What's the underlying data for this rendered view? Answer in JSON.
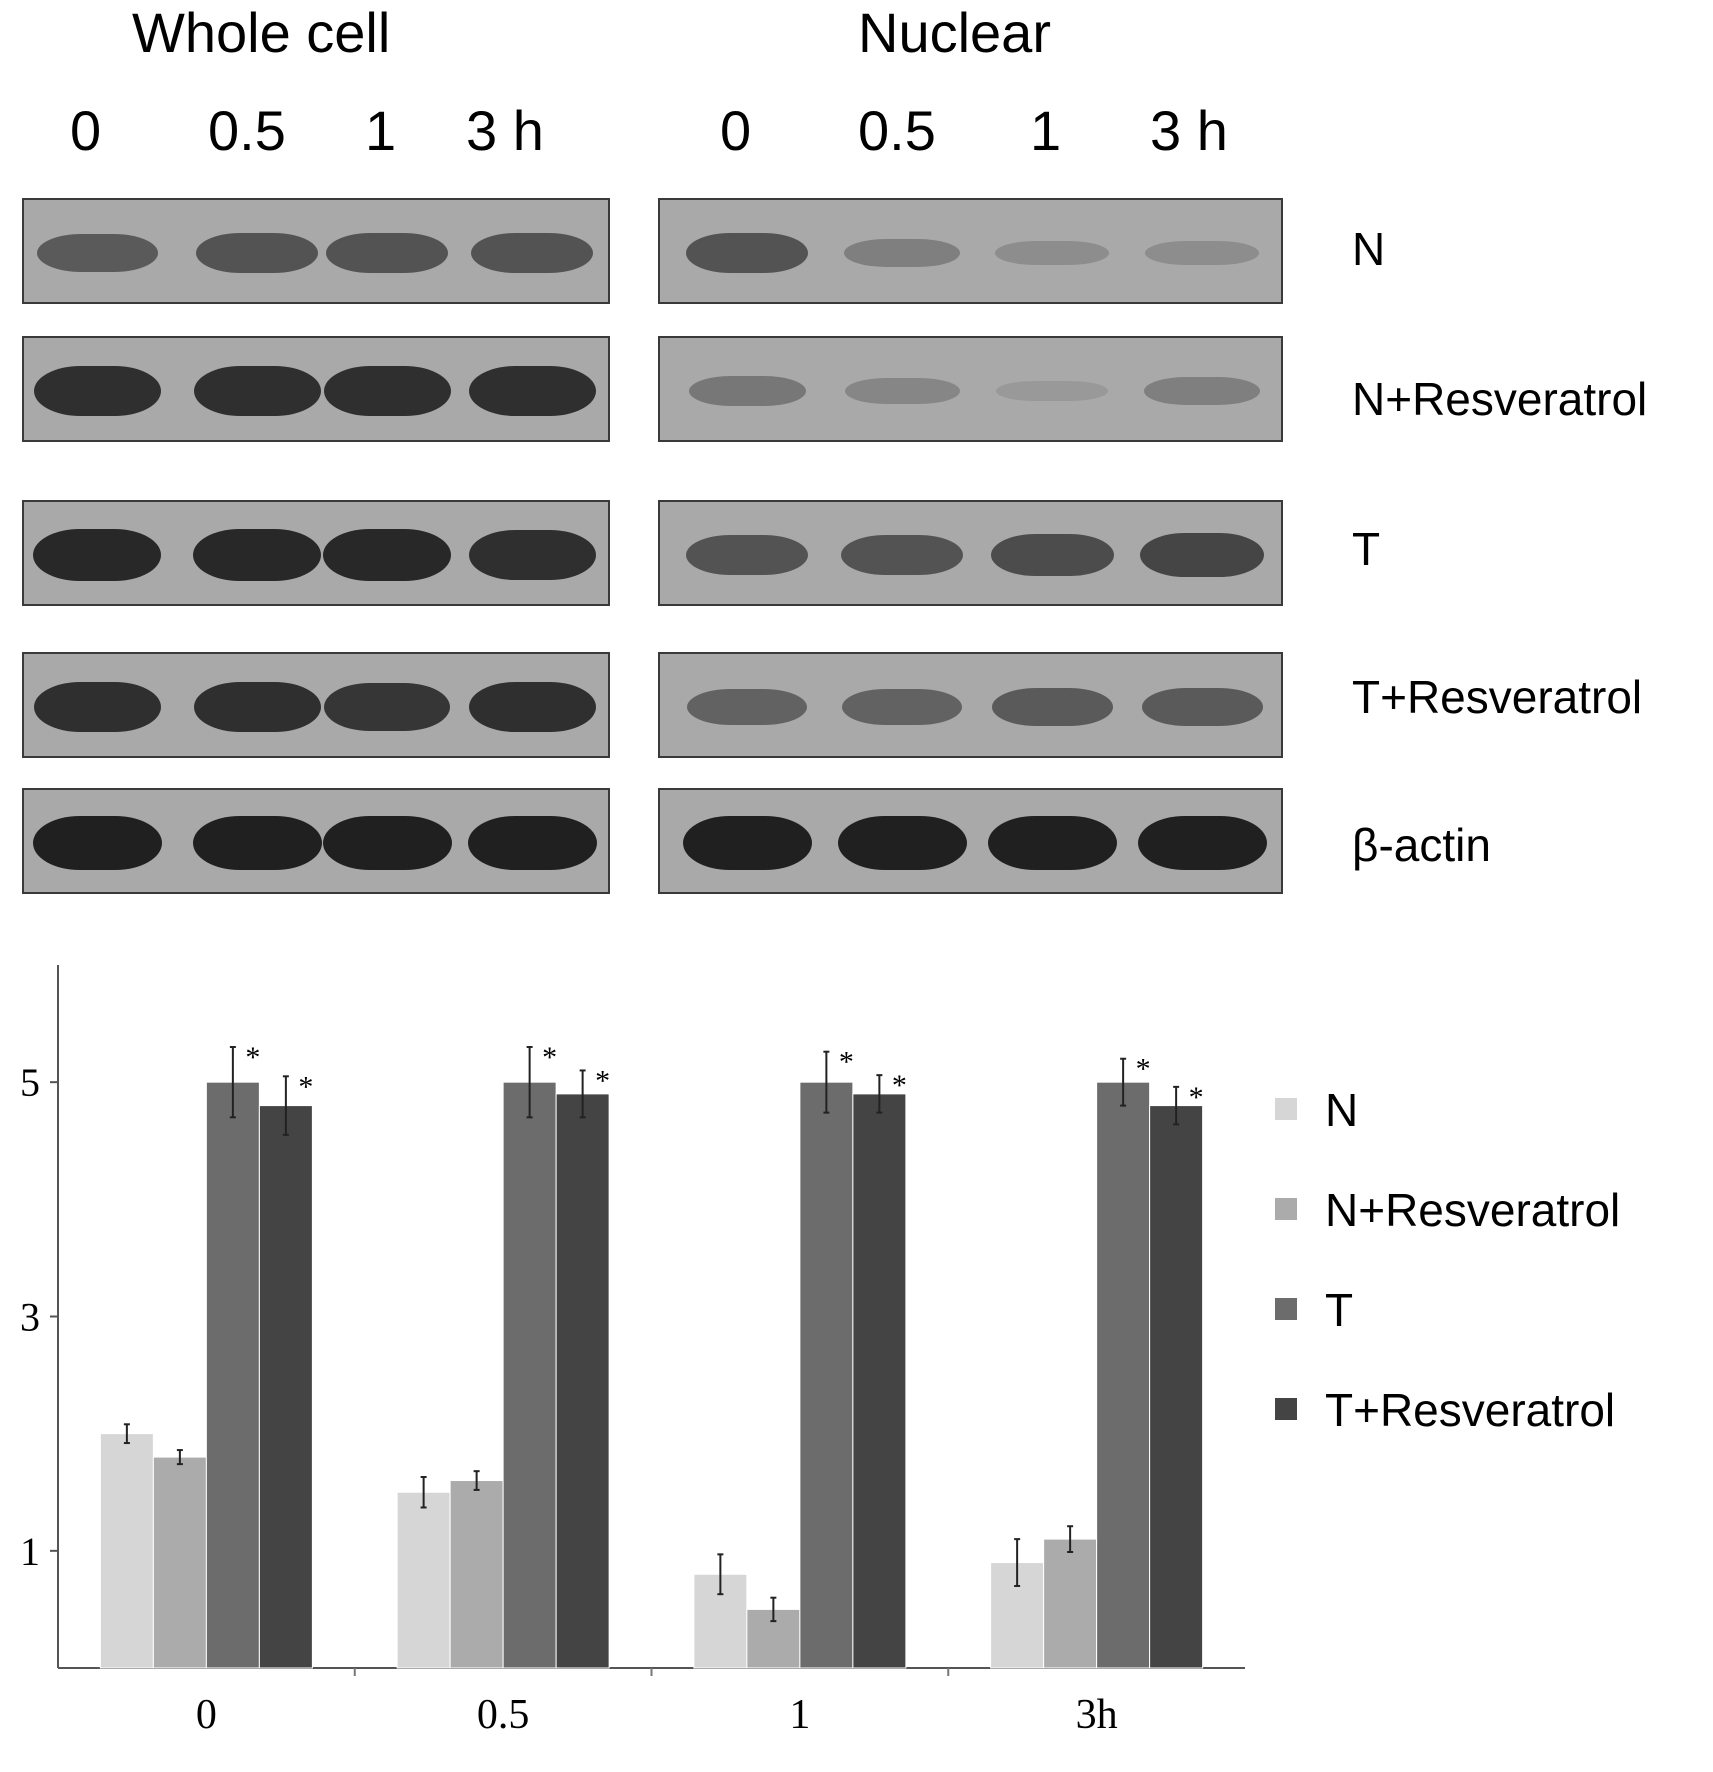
{
  "blot": {
    "titles": {
      "whole": "Whole cell",
      "nuclear": "Nuclear"
    },
    "lanes_whole": [
      "0",
      "0.5",
      "1",
      "3 h"
    ],
    "lanes_nuclear": [
      "0",
      "0.5",
      "1",
      "3 h"
    ],
    "rows": [
      {
        "label": "N",
        "whole_intensity": [
          0.55,
          0.6,
          0.6,
          0.6
        ],
        "nuclear_intensity": [
          0.6,
          0.3,
          0.2,
          0.2
        ]
      },
      {
        "label": "N+Resveratrol",
        "whole_intensity": [
          0.85,
          0.85,
          0.85,
          0.85
        ],
        "nuclear_intensity": [
          0.35,
          0.25,
          0.12,
          0.3
        ]
      },
      {
        "label": "T",
        "whole_intensity": [
          0.9,
          0.9,
          0.9,
          0.85
        ],
        "nuclear_intensity": [
          0.6,
          0.6,
          0.65,
          0.7
        ]
      },
      {
        "label": "T+Resveratrol",
        "whole_intensity": [
          0.85,
          0.85,
          0.8,
          0.85
        ],
        "nuclear_intensity": [
          0.5,
          0.5,
          0.55,
          0.55
        ]
      },
      {
        "label": "β-actin",
        "whole_intensity": [
          0.95,
          0.95,
          0.95,
          0.95
        ],
        "nuclear_intensity": [
          0.95,
          0.95,
          0.95,
          0.95
        ]
      }
    ]
  },
  "chart_data": {
    "type": "bar",
    "categories": [
      "0",
      "0.5",
      "1",
      "3h"
    ],
    "yticks": [
      1,
      3,
      5
    ],
    "ylim": [
      0,
      6
    ],
    "series": [
      {
        "name": "N",
        "color": "#d6d6d6",
        "values": [
          2.0,
          1.5,
          0.8,
          0.9
        ],
        "errors": [
          0.08,
          0.13,
          0.17,
          0.2
        ],
        "sig": [
          false,
          false,
          false,
          false
        ]
      },
      {
        "name": "N+Resveratrol",
        "color": "#ababab",
        "values": [
          1.8,
          1.6,
          0.5,
          1.1
        ],
        "errors": [
          0.06,
          0.08,
          0.1,
          0.11
        ],
        "sig": [
          false,
          false,
          false,
          false
        ]
      },
      {
        "name": "T",
        "color": "#6c6c6c",
        "values": [
          5.0,
          5.0,
          5.0,
          5.0
        ],
        "errors": [
          0.3,
          0.3,
          0.26,
          0.2
        ],
        "sig": [
          true,
          true,
          true,
          true
        ]
      },
      {
        "name": "T+Resveratrol",
        "color": "#444444",
        "values": [
          4.8,
          4.9,
          4.9,
          4.8
        ],
        "errors": [
          0.25,
          0.2,
          0.16,
          0.16
        ],
        "sig": [
          true,
          true,
          true,
          true
        ]
      }
    ],
    "sig_marker": "*",
    "legend_position": "right"
  }
}
